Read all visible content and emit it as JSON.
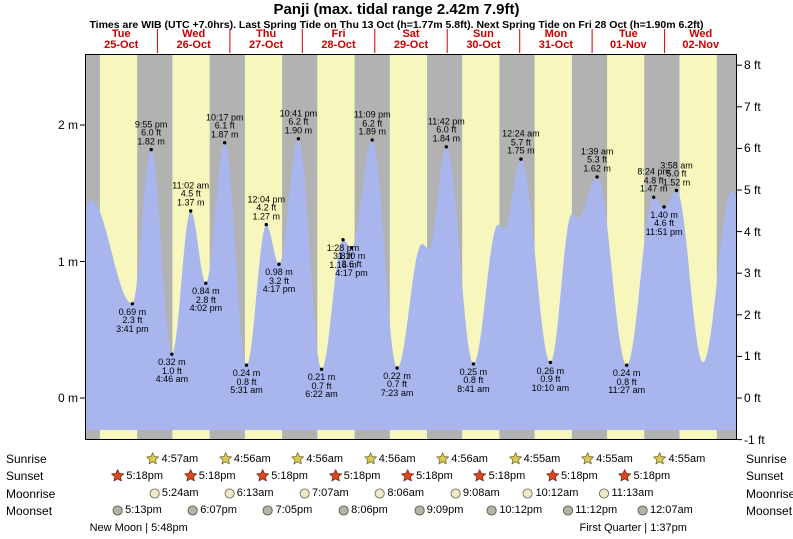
{
  "title": "Panji (max. tidal range 2.42m 7.9ft)",
  "subtitle": "Times are WIB (UTC +7.0hrs). Last Spring Tide on Thu 13 Oct (h=1.77m 5.8ft). Next Spring Tide on Fri 28 Oct (h=1.90m 6.2ft)",
  "colors": {
    "day_background": "#f7f7bd",
    "night_background": "#b2b2b2",
    "water": "#a9b6ee",
    "day_label_red": "#cc0000",
    "sunrise_star": "#ddc94e",
    "sunset_star": "#e0481c",
    "moonrise_moon": "#efe9c8",
    "moonset_moon": "#b4b4a6"
  },
  "chart_data": {
    "type": "area",
    "title": "Panji (max. tidal range 2.42m 7.9ft)",
    "ylim_m": [
      -0.31,
      2.52
    ],
    "grid": false,
    "y_axis_left": {
      "unit": "m",
      "ticks": [
        {
          "label": "0 m",
          "m": 0
        },
        {
          "label": "1 m",
          "m": 1
        },
        {
          "label": "2 m",
          "m": 2
        }
      ]
    },
    "y_axis_right": {
      "unit": "ft",
      "ticks": [
        {
          "label": "-1 ft",
          "ft": -1
        },
        {
          "label": "0 ft",
          "ft": 0
        },
        {
          "label": "1 ft",
          "ft": 1
        },
        {
          "label": "2 ft",
          "ft": 2
        },
        {
          "label": "3 ft",
          "ft": 3
        },
        {
          "label": "4 ft",
          "ft": 4
        },
        {
          "label": "5 ft",
          "ft": 5
        },
        {
          "label": "6 ft",
          "ft": 6
        },
        {
          "label": "7 ft",
          "ft": 7
        },
        {
          "label": "8 ft",
          "ft": 8
        }
      ]
    },
    "x_days": [
      {
        "name": "Tue",
        "date": "25-Oct"
      },
      {
        "name": "Wed",
        "date": "26-Oct"
      },
      {
        "name": "Thu",
        "date": "27-Oct"
      },
      {
        "name": "Fri",
        "date": "28-Oct"
      },
      {
        "name": "Sat",
        "date": "29-Oct"
      },
      {
        "name": "Sun",
        "date": "30-Oct"
      },
      {
        "name": "Mon",
        "date": "31-Oct"
      },
      {
        "name": "Tue",
        "date": "01-Nov"
      },
      {
        "name": "Wed",
        "date": "02-Nov"
      }
    ],
    "extremes": [
      {
        "kind": "low",
        "day": 0,
        "time": "3:41 pm",
        "label_m": "0.69 m",
        "label_ft": "2.3 ft",
        "height_m": 0.69
      },
      {
        "kind": "high",
        "day": 0,
        "time": "9:55 pm",
        "label_m": "1.82 m",
        "label_ft": "6.0 ft",
        "height_m": 1.82
      },
      {
        "kind": "low",
        "day": 1,
        "time": "4:46 am",
        "label_m": "0.32 m",
        "label_ft": "1.0 ft",
        "height_m": 0.32
      },
      {
        "kind": "high",
        "day": 1,
        "time": "11:02 am",
        "label_m": "1.37 m",
        "label_ft": "4.5 ft",
        "height_m": 1.37
      },
      {
        "kind": "low",
        "day": 1,
        "time": "4:02 pm",
        "label_m": "0.84 m",
        "label_ft": "2.8 ft",
        "height_m": 0.84
      },
      {
        "kind": "high",
        "day": 1,
        "time": "10:17 pm",
        "label_m": "1.87 m",
        "label_ft": "6.1 ft",
        "height_m": 1.87
      },
      {
        "kind": "low",
        "day": 2,
        "time": "5:31 am",
        "label_m": "0.24 m",
        "label_ft": "0.8 ft",
        "height_m": 0.24
      },
      {
        "kind": "high",
        "day": 2,
        "time": "12:04 pm",
        "label_m": "1.27 m",
        "label_ft": "4.2 ft",
        "height_m": 1.27
      },
      {
        "kind": "low",
        "day": 2,
        "time": "4:17 pm",
        "label_m": "0.98 m",
        "label_ft": "3.2 ft",
        "height_m": 0.98
      },
      {
        "kind": "high",
        "day": 2,
        "time": "10:41 pm",
        "label_m": "1.90 m",
        "label_ft": "6.2 ft",
        "height_m": 1.9
      },
      {
        "kind": "low",
        "day": 3,
        "time": "6:22 am",
        "label_m": "0.21 m",
        "label_ft": "0.7 ft",
        "height_m": 0.21
      },
      {
        "kind": "high",
        "day": 3,
        "time": "1:28 pm",
        "label_m": "1.16 m",
        "label_ft": "3.8 ft",
        "height_m": 1.16,
        "label_side": "below"
      },
      {
        "kind": "low",
        "day": 3,
        "time": "4:17 pm",
        "label_m": "1.10 m",
        "label_ft": "3.6 ft",
        "height_m": 1.1
      },
      {
        "kind": "high",
        "day": 3,
        "time": "11:09 pm",
        "label_m": "1.89 m",
        "label_ft": "6.2 ft",
        "height_m": 1.89
      },
      {
        "kind": "low",
        "day": 4,
        "time": "7:23 am",
        "label_m": "0.22 m",
        "label_ft": "0.7 ft",
        "height_m": 0.22
      },
      {
        "kind": "high",
        "day": 4,
        "time": "11:42 pm",
        "label_m": "1.84 m",
        "label_ft": "6.0 ft",
        "height_m": 1.84
      },
      {
        "kind": "low",
        "day": 5,
        "time": "8:41 am",
        "label_m": "0.25 m",
        "label_ft": "0.8 ft",
        "height_m": 0.25
      },
      {
        "kind": "high",
        "day": 6,
        "time": "12:24 am",
        "label_m": "1.75 m",
        "label_ft": "5.7 ft",
        "height_m": 1.75
      },
      {
        "kind": "low",
        "day": 6,
        "time": "10:10 am",
        "label_m": "0.26 m",
        "label_ft": "0.9 ft",
        "height_m": 0.26
      },
      {
        "kind": "high",
        "day": 7,
        "time": "1:39 am",
        "label_m": "1.62 m",
        "label_ft": "5.3 ft",
        "height_m": 1.62
      },
      {
        "kind": "low",
        "day": 7,
        "time": "11:27 am",
        "label_m": "0.24 m",
        "label_ft": "0.8 ft",
        "height_m": 0.24
      },
      {
        "kind": "high",
        "day": 7,
        "time": "8:24 pm",
        "label_m": "1.47 m",
        "label_ft": "4.8 ft",
        "height_m": 1.47
      },
      {
        "kind": "low",
        "day": 7,
        "time": "11:51 pm",
        "label_m": "1.40 m",
        "label_ft": "4.6 ft",
        "height_m": 1.4
      },
      {
        "kind": "high",
        "day": 8,
        "time": "3:58 am",
        "label_m": "1.52 m",
        "label_ft": "5.0 ft",
        "height_m": 1.52
      }
    ],
    "curve_extra_points": [
      [
        0.0,
        1.4
      ],
      [
        0.08,
        1.45
      ],
      [
        4.65,
        1.13
      ],
      [
        4.75,
        1.09
      ],
      [
        5.7,
        1.27
      ],
      [
        5.79,
        1.24
      ],
      [
        6.72,
        1.35
      ],
      [
        6.81,
        1.32
      ],
      [
        8.53,
        0.26
      ],
      [
        8.93,
        1.52
      ],
      [
        9.0,
        1.48
      ]
    ]
  },
  "astro": {
    "row_labels": [
      "Sunrise",
      "Sunset",
      "Moonrise",
      "Moonset"
    ],
    "sunrise": [
      {
        "day": 1,
        "time": "4:57am"
      },
      {
        "day": 2,
        "time": "4:56am"
      },
      {
        "day": 3,
        "time": "4:56am"
      },
      {
        "day": 4,
        "time": "4:56am"
      },
      {
        "day": 5,
        "time": "4:56am"
      },
      {
        "day": 6,
        "time": "4:55am"
      },
      {
        "day": 7,
        "time": "4:55am"
      },
      {
        "day": 8,
        "time": "4:55am"
      }
    ],
    "sunset": [
      {
        "day": 0,
        "time": "5:18pm"
      },
      {
        "day": 1,
        "time": "5:18pm"
      },
      {
        "day": 2,
        "time": "5:18pm"
      },
      {
        "day": 3,
        "time": "5:18pm"
      },
      {
        "day": 4,
        "time": "5:18pm"
      },
      {
        "day": 5,
        "time": "5:18pm"
      },
      {
        "day": 6,
        "time": "5:18pm"
      },
      {
        "day": 7,
        "time": "5:18pm"
      }
    ],
    "moonrise": [
      {
        "day": 1,
        "time": "5:24am"
      },
      {
        "day": 2,
        "time": "6:13am"
      },
      {
        "day": 3,
        "time": "7:07am"
      },
      {
        "day": 4,
        "time": "8:06am"
      },
      {
        "day": 5,
        "time": "9:08am"
      },
      {
        "day": 6,
        "time": "10:12am"
      },
      {
        "day": 7,
        "time": "11:13am"
      }
    ],
    "moonset": [
      {
        "day": 0,
        "time": "5:13pm"
      },
      {
        "day": 1,
        "time": "6:07pm"
      },
      {
        "day": 2,
        "time": "7:05pm"
      },
      {
        "day": 3,
        "time": "8:06pm"
      },
      {
        "day": 4,
        "time": "9:09pm"
      },
      {
        "day": 5,
        "time": "10:12pm"
      },
      {
        "day": 6,
        "time": "11:12pm"
      },
      {
        "day": 8,
        "time": "12:07am"
      }
    ],
    "phases": [
      {
        "name": "New Moon",
        "time": "5:48pm",
        "day": 0
      },
      {
        "name": "First Quarter",
        "time": "1:37pm",
        "day": 7
      }
    ]
  }
}
